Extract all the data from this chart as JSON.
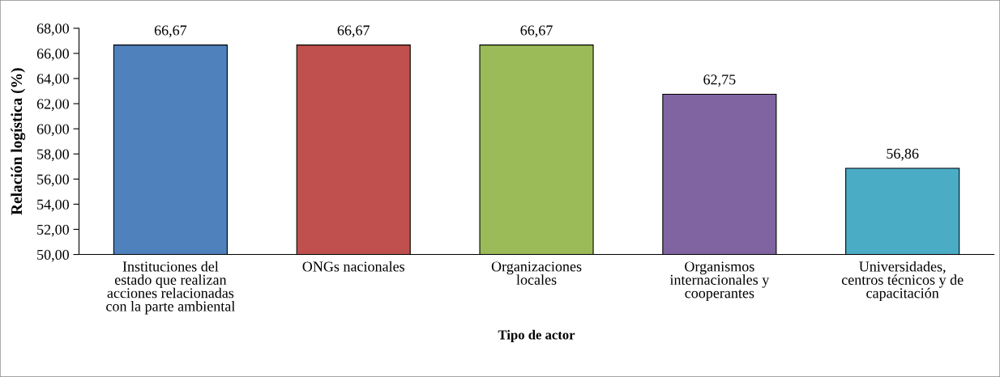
{
  "chart_data": {
    "type": "bar",
    "categories": [
      "Instituciones del\nestado que realizan\nacciones relacionadas\ncon la parte ambiental",
      "ONGs nacionales",
      "Organizaciones\nlocales",
      "Organismos\ninternacionales y\ncooperantes",
      "Universidades,\ncentros técnicos y de\ncapacitación"
    ],
    "values": [
      66.67,
      66.67,
      66.67,
      62.75,
      56.86
    ],
    "value_labels": [
      "66,67",
      "66,67",
      "66,67",
      "62,75",
      "56,86"
    ],
    "colors": [
      "#4f81bd",
      "#c0504d",
      "#9bbb59",
      "#8064a2",
      "#4bacc6"
    ],
    "xlabel": "Tipo de actor",
    "ylabel": "Relación logística (%)",
    "ylim": [
      50,
      68
    ],
    "yticks": [
      {
        "value": 50,
        "label": "50,00"
      },
      {
        "value": 52,
        "label": "52,00"
      },
      {
        "value": 54,
        "label": "54,00"
      },
      {
        "value": 56,
        "label": "56,00"
      },
      {
        "value": 58,
        "label": "58,00"
      },
      {
        "value": 60,
        "label": "60,00"
      },
      {
        "value": 62,
        "label": "62,00"
      },
      {
        "value": 64,
        "label": "64,00"
      },
      {
        "value": 66,
        "label": "66,00"
      },
      {
        "value": 68,
        "label": "68,00"
      }
    ]
  }
}
